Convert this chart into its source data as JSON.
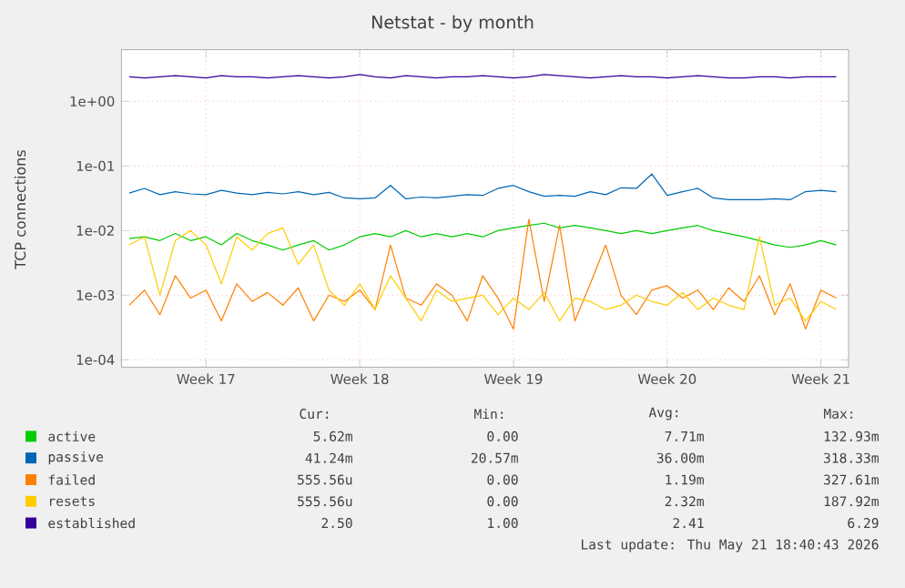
{
  "chart_data": {
    "type": "line",
    "title": "Netstat - by month",
    "ylabel": "TCP connections",
    "log": true,
    "grid": true,
    "legend": "bottom",
    "marker": "none",
    "line_style": "solid",
    "ylim": [
      7.7e-05,
      6.3
    ],
    "yticks": [
      {
        "value": 0.0001,
        "label": "1e-04"
      },
      {
        "value": 0.001,
        "label": "1e-03"
      },
      {
        "value": 0.01,
        "label": "1e-02"
      },
      {
        "value": 0.1,
        "label": "1e-01"
      },
      {
        "value": 1,
        "label": "1e+00"
      }
    ],
    "categories": [
      null,
      null,
      null,
      null,
      null,
      "Week 17",
      null,
      null,
      null,
      null,
      null,
      null,
      null,
      null,
      null,
      "Week 18",
      null,
      null,
      null,
      null,
      null,
      null,
      null,
      null,
      null,
      "Week 19",
      null,
      null,
      null,
      null,
      null,
      null,
      null,
      null,
      null,
      "Week 20",
      null,
      null,
      null,
      null,
      null,
      null,
      null,
      null,
      null,
      "Week 21",
      null
    ],
    "series": [
      {
        "name": "active",
        "color": "#00cc00",
        "values": [
          0.0075,
          0.008,
          0.007,
          0.009,
          0.007,
          0.008,
          0.006,
          0.009,
          0.007,
          0.006,
          0.005,
          0.006,
          0.007,
          0.005,
          0.006,
          0.008,
          0.009,
          0.008,
          0.01,
          0.008,
          0.009,
          0.008,
          0.009,
          0.008,
          0.01,
          0.011,
          0.012,
          0.013,
          0.011,
          0.012,
          0.011,
          0.01,
          0.009,
          0.01,
          0.009,
          0.01,
          0.011,
          0.012,
          0.01,
          0.009,
          0.008,
          0.007,
          0.006,
          0.0055,
          0.006,
          0.007,
          0.006
        ]
      },
      {
        "name": "passive",
        "color": "#0066b3",
        "values": [
          0.038,
          0.045,
          0.036,
          0.04,
          0.037,
          0.036,
          0.042,
          0.038,
          0.036,
          0.039,
          0.037,
          0.04,
          0.036,
          0.039,
          0.032,
          0.031,
          0.032,
          0.05,
          0.031,
          0.033,
          0.032,
          0.034,
          0.036,
          0.035,
          0.045,
          0.05,
          0.04,
          0.034,
          0.035,
          0.034,
          0.04,
          0.036,
          0.046,
          0.045,
          0.075,
          0.035,
          0.04,
          0.045,
          0.032,
          0.03,
          0.03,
          0.03,
          0.031,
          0.03,
          0.04,
          0.042,
          0.04
        ]
      },
      {
        "name": "failed",
        "color": "#ff8000",
        "values": [
          0.0007,
          0.0012,
          0.0005,
          0.002,
          0.0009,
          0.0012,
          0.0004,
          0.0015,
          0.0008,
          0.0011,
          0.0007,
          0.0013,
          0.0004,
          0.001,
          0.0008,
          0.0012,
          0.0006,
          0.006,
          0.0009,
          0.0007,
          0.0015,
          0.001,
          0.0004,
          0.002,
          0.0009,
          0.0003,
          0.015,
          0.0008,
          0.012,
          0.0004,
          0.0015,
          0.006,
          0.001,
          0.0005,
          0.0012,
          0.0014,
          0.0009,
          0.0012,
          0.0006,
          0.0013,
          0.0008,
          0.002,
          0.0005,
          0.0015,
          0.0003,
          0.0012,
          0.0009
        ]
      },
      {
        "name": "resets",
        "color": "#ffcc00",
        "values": [
          0.006,
          0.008,
          0.001,
          0.007,
          0.01,
          0.006,
          0.0015,
          0.008,
          0.005,
          0.009,
          0.011,
          0.003,
          0.006,
          0.0012,
          0.0007,
          0.0015,
          0.0006,
          0.002,
          0.0009,
          0.0004,
          0.0012,
          0.0008,
          0.0009,
          0.001,
          0.0005,
          0.0009,
          0.0006,
          0.0011,
          0.0004,
          0.0009,
          0.0008,
          0.0006,
          0.0007,
          0.001,
          0.0008,
          0.0007,
          0.0011,
          0.0006,
          0.0009,
          0.0007,
          0.0006,
          0.008,
          0.0007,
          0.0009,
          0.0004,
          0.0008,
          0.0006
        ]
      },
      {
        "name": "established",
        "color": "#330099",
        "values": [
          2.4,
          2.3,
          2.4,
          2.5,
          2.4,
          2.3,
          2.5,
          2.4,
          2.4,
          2.3,
          2.4,
          2.5,
          2.4,
          2.3,
          2.4,
          2.6,
          2.4,
          2.3,
          2.5,
          2.4,
          2.3,
          2.4,
          2.4,
          2.5,
          2.4,
          2.3,
          2.4,
          2.6,
          2.5,
          2.4,
          2.3,
          2.4,
          2.5,
          2.4,
          2.4,
          2.3,
          2.4,
          2.5,
          2.4,
          2.3,
          2.3,
          2.4,
          2.4,
          2.3,
          2.4,
          2.4,
          2.4
        ]
      }
    ],
    "annotations": [
      "Cur:",
      "Min:",
      "Avg:",
      "Max:",
      "5.62m",
      "0.00",
      "7.71m",
      "132.93m",
      "41.24m",
      "20.57m",
      "36.00m",
      "318.33m",
      "555.56u",
      "0.00",
      "1.19m",
      "327.61m",
      "555.56u",
      "0.00",
      "2.32m",
      "187.92m",
      "2.50",
      "1.00",
      "2.41",
      "6.29",
      "Last update: Thu May 21 18:40:43 2026"
    ]
  }
}
